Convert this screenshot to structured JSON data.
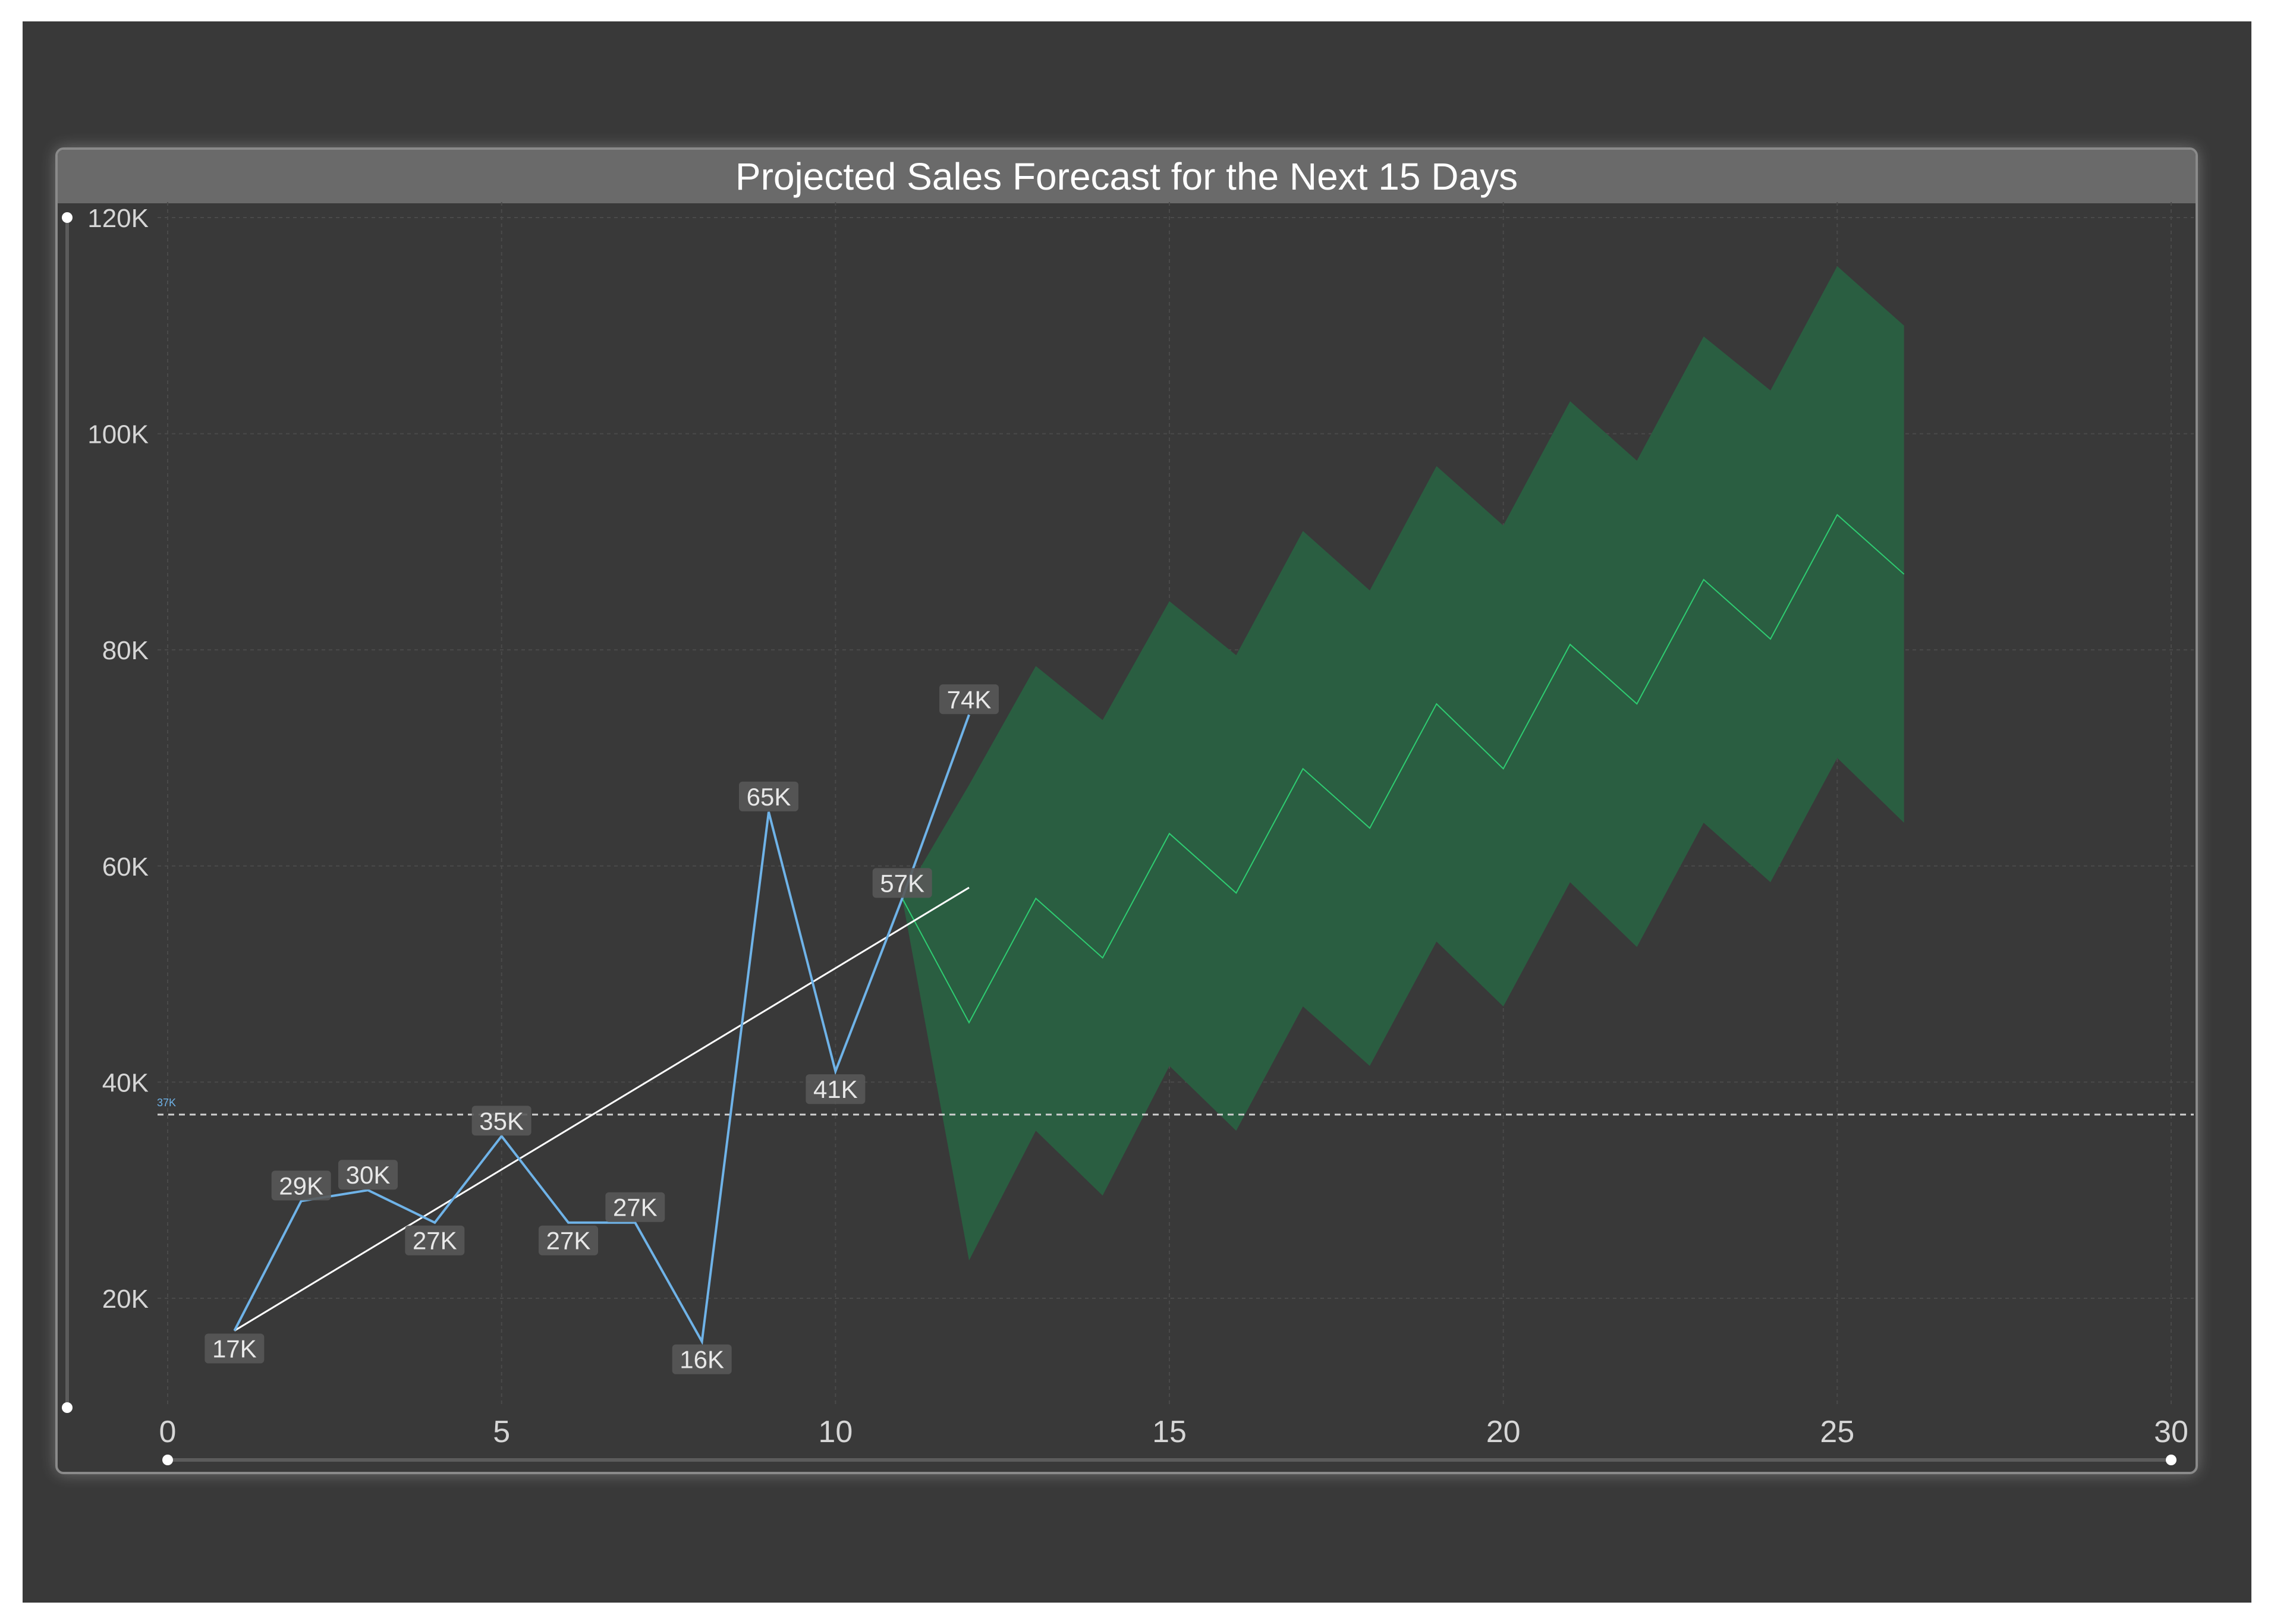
{
  "chart_data": {
    "type": "line",
    "title": "Projected Sales Forecast for the Next 15 Days",
    "xlabel": "",
    "ylabel": "",
    "xlim": [
      0,
      30
    ],
    "ylim": [
      10000,
      120000
    ],
    "x_ticks": [
      0,
      5,
      10,
      15,
      20,
      25,
      30
    ],
    "x_tick_labels": [
      "0",
      "5",
      "10",
      "15",
      "20",
      "25",
      "30"
    ],
    "y_ticks": [
      20000,
      40000,
      60000,
      80000,
      100000,
      120000
    ],
    "y_tick_labels": [
      "20K",
      "40K",
      "60K",
      "80K",
      "100K",
      "120K"
    ],
    "grid": true,
    "series": [
      {
        "kind": "actual",
        "color": "#6fb3e8",
        "x": [
          1,
          2,
          3,
          4,
          5,
          6,
          7,
          8,
          9,
          10,
          11,
          12
        ],
        "values": [
          17000,
          29000,
          30000,
          27000,
          35000,
          27000,
          27000,
          16000,
          65000,
          41000,
          57000,
          74000
        ],
        "labels": [
          "17K",
          "29K",
          "30K",
          "27K",
          "35K",
          "27K",
          "27K",
          "16K",
          "65K",
          "41K",
          "57K",
          "74K"
        ]
      },
      {
        "kind": "trend",
        "color": "#ffffff",
        "x": [
          1,
          12
        ],
        "values": [
          17000,
          58000
        ]
      },
      {
        "kind": "forecast",
        "color": "#2ecc71",
        "x": [
          11,
          12,
          13,
          14,
          15,
          16,
          17,
          18,
          19,
          20,
          21,
          22,
          23,
          24,
          25,
          26
        ],
        "values": [
          57000,
          45500,
          57000,
          51500,
          63000,
          57500,
          69000,
          63500,
          75000,
          69000,
          80500,
          75000,
          86500,
          81000,
          92500,
          87000
        ],
        "upper": [
          57000,
          67500,
          78500,
          73500,
          84500,
          79500,
          91000,
          85500,
          97000,
          91500,
          103000,
          97500,
          109000,
          104000,
          115500,
          110000
        ],
        "lower": [
          57000,
          23500,
          35500,
          29500,
          41500,
          35500,
          47000,
          41500,
          53000,
          47000,
          58500,
          52500,
          64000,
          58500,
          70000,
          64000
        ],
        "band_color": "#2a5e41"
      }
    ],
    "reference_line": {
      "value": 37000,
      "label": "37K"
    }
  }
}
